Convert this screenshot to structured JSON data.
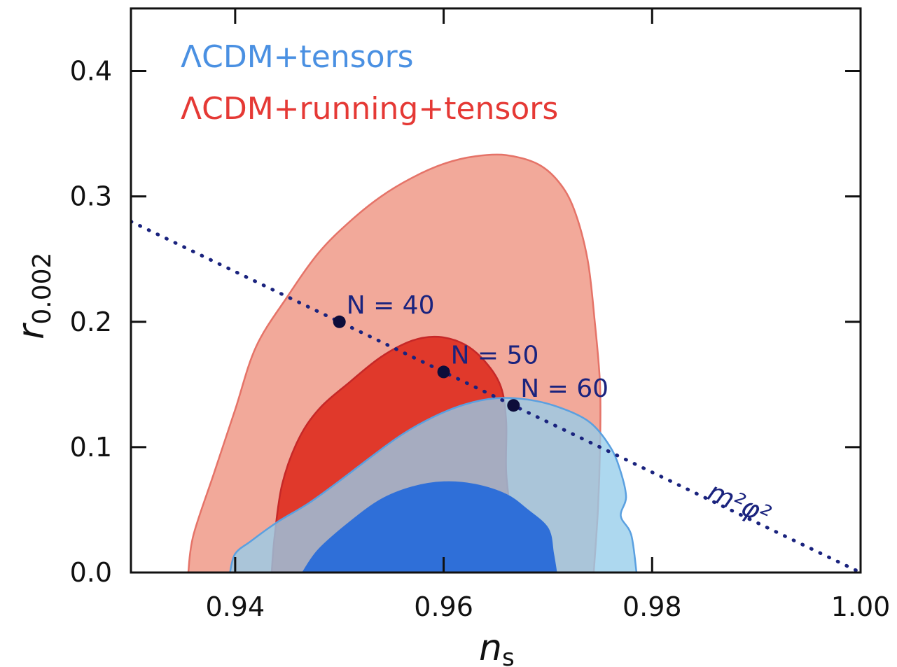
{
  "chart_data": {
    "type": "contour",
    "xlabel_main": "n",
    "xlabel_sub": "s",
    "ylabel_main": "r",
    "ylabel_sub": "0.002",
    "xlim": [
      0.93,
      1.0
    ],
    "ylim": [
      0.0,
      0.45
    ],
    "xticks": [
      {
        "value": 0.94,
        "label": "0.94"
      },
      {
        "value": 0.96,
        "label": "0.96"
      },
      {
        "value": 0.98,
        "label": "0.98"
      },
      {
        "value": 1.0,
        "label": "1.00"
      }
    ],
    "yticks": [
      {
        "value": 0.0,
        "label": "0.0"
      },
      {
        "value": 0.1,
        "label": "0.1"
      },
      {
        "value": 0.2,
        "label": "0.2"
      },
      {
        "value": 0.3,
        "label": "0.3"
      },
      {
        "value": 0.4,
        "label": "0.4"
      }
    ],
    "legend": {
      "placement": "top-left",
      "entries": [
        {
          "label": "ΛCDM+tensors",
          "color": "#4a90e2"
        },
        {
          "label": "ΛCDM+running+tensors",
          "color": "#e53935"
        }
      ]
    },
    "contours": [
      {
        "series": "ΛCDM+running+tensors",
        "level": "95%",
        "fill": "#f2a99a",
        "stroke": "#e57368",
        "points": [
          [
            0.9355,
            0.0
          ],
          [
            0.936,
            0.03
          ],
          [
            0.938,
            0.08
          ],
          [
            0.94,
            0.13
          ],
          [
            0.942,
            0.18
          ],
          [
            0.945,
            0.22
          ],
          [
            0.948,
            0.255
          ],
          [
            0.951,
            0.28
          ],
          [
            0.954,
            0.3
          ],
          [
            0.957,
            0.315
          ],
          [
            0.96,
            0.326
          ],
          [
            0.963,
            0.332
          ],
          [
            0.966,
            0.333
          ],
          [
            0.969,
            0.326
          ],
          [
            0.971,
            0.312
          ],
          [
            0.9725,
            0.29
          ],
          [
            0.9738,
            0.25
          ],
          [
            0.9745,
            0.2
          ],
          [
            0.975,
            0.15
          ],
          [
            0.975,
            0.1
          ],
          [
            0.9748,
            0.05
          ],
          [
            0.9744,
            0.0
          ]
        ]
      },
      {
        "series": "ΛCDM+running+tensors",
        "level": "68%",
        "fill": "#e0392b",
        "stroke": "#c62828",
        "points": [
          [
            0.9435,
            0.0
          ],
          [
            0.9438,
            0.03
          ],
          [
            0.9445,
            0.07
          ],
          [
            0.946,
            0.105
          ],
          [
            0.948,
            0.13
          ],
          [
            0.951,
            0.152
          ],
          [
            0.954,
            0.172
          ],
          [
            0.957,
            0.185
          ],
          [
            0.9595,
            0.188
          ],
          [
            0.962,
            0.182
          ],
          [
            0.964,
            0.168
          ],
          [
            0.9655,
            0.148
          ],
          [
            0.966,
            0.12
          ],
          [
            0.966,
            0.08
          ],
          [
            0.9665,
            0.04
          ],
          [
            0.9668,
            0.0
          ]
        ]
      },
      {
        "series": "ΛCDM+tensors",
        "level": "95%",
        "fill": "rgba(150,205,235,0.78)",
        "stroke": "#5aa0e0",
        "points": [
          [
            0.9395,
            0.0
          ],
          [
            0.94,
            0.015
          ],
          [
            0.9415,
            0.025
          ],
          [
            0.944,
            0.04
          ],
          [
            0.947,
            0.055
          ],
          [
            0.95,
            0.073
          ],
          [
            0.953,
            0.092
          ],
          [
            0.956,
            0.11
          ],
          [
            0.959,
            0.124
          ],
          [
            0.962,
            0.134
          ],
          [
            0.965,
            0.139
          ],
          [
            0.968,
            0.138
          ],
          [
            0.971,
            0.132
          ],
          [
            0.974,
            0.12
          ],
          [
            0.976,
            0.1
          ],
          [
            0.977,
            0.08
          ],
          [
            0.9775,
            0.06
          ],
          [
            0.977,
            0.045
          ],
          [
            0.978,
            0.03
          ],
          [
            0.9785,
            0.0
          ]
        ]
      },
      {
        "series": "ΛCDM+tensors",
        "level": "68%",
        "fill": "#2f6fd8",
        "stroke": "#2f6fd8",
        "points": [
          [
            0.9465,
            0.0
          ],
          [
            0.948,
            0.018
          ],
          [
            0.951,
            0.04
          ],
          [
            0.954,
            0.058
          ],
          [
            0.957,
            0.068
          ],
          [
            0.96,
            0.072
          ],
          [
            0.963,
            0.07
          ],
          [
            0.966,
            0.062
          ],
          [
            0.968,
            0.05
          ],
          [
            0.97,
            0.035
          ],
          [
            0.9705,
            0.015
          ],
          [
            0.9708,
            0.0
          ]
        ]
      }
    ],
    "model_line": {
      "label": "m²φ²",
      "color": "#1a237e",
      "style": "dotted",
      "points": [
        [
          0.93,
          0.28
        ],
        [
          1.0,
          0.0
        ]
      ]
    },
    "model_points": [
      {
        "label": "N = 40",
        "x": 0.95,
        "y": 0.2
      },
      {
        "label": "N = 50",
        "x": 0.96,
        "y": 0.16
      },
      {
        "label": "N = 60",
        "x": 0.9667,
        "y": 0.1333
      }
    ]
  }
}
